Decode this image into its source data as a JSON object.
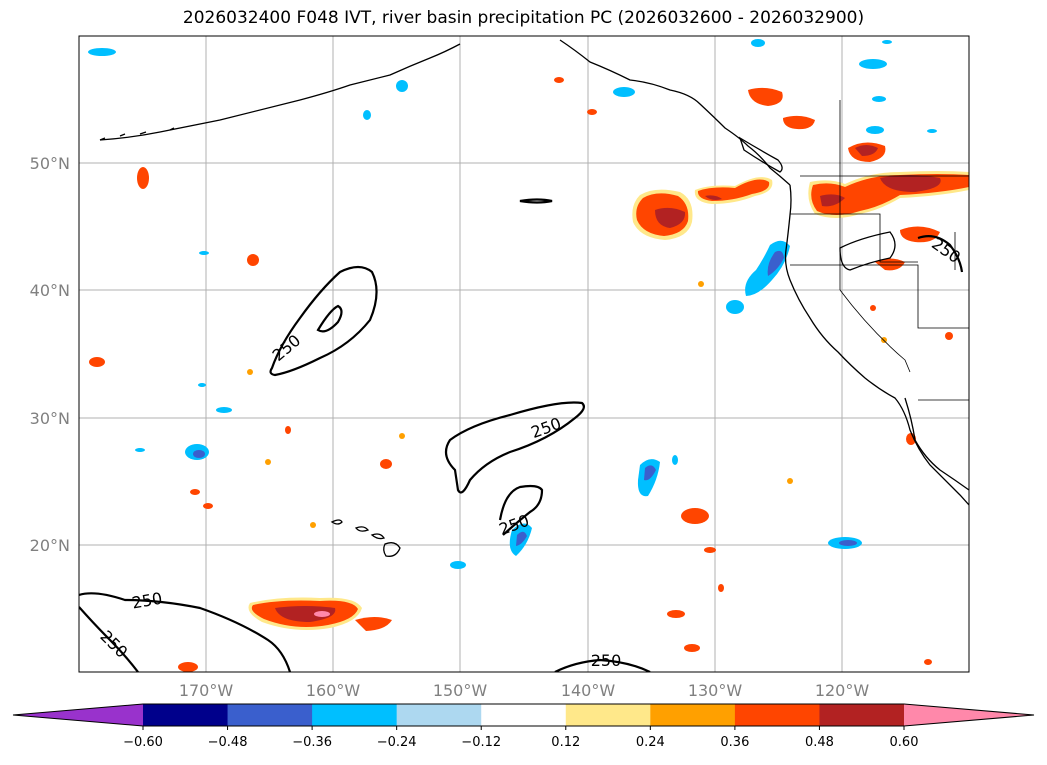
{
  "title": "2026032400 F048 IVT, river basin precipitation PC (2026032600 - 2026032900)",
  "map": {
    "lat_labels": [
      "50°N",
      "40°N",
      "30°N",
      "20°N"
    ],
    "lon_labels": [
      "170°W",
      "160°W",
      "150°W",
      "140°W",
      "130°W",
      "120°W"
    ],
    "contour_level": "250"
  },
  "colorbar": {
    "ticks": [
      "−0.60",
      "−0.48",
      "−0.36",
      "−0.24",
      "−0.12",
      "0.12",
      "0.24",
      "0.36",
      "0.48",
      "0.60"
    ],
    "under_color": "#9932cc",
    "colors": [
      "#00008b",
      "#3a5fcd",
      "#00bfff",
      "#add8f0",
      "#ffffff",
      "#ffe88a",
      "#ffa000",
      "#ff4500",
      "#b22222"
    ],
    "over_color": "#ff88aa"
  },
  "colors": {
    "pos_low": "#ffe88a",
    "pos_mid": "#ffa000",
    "pos_high": "#ff4500",
    "pos_max": "#b22222",
    "pos_extreme": "#ff88aa",
    "neg_low": "#add8f0",
    "neg_mid": "#00bfff",
    "neg_high": "#3a5fcd"
  }
}
